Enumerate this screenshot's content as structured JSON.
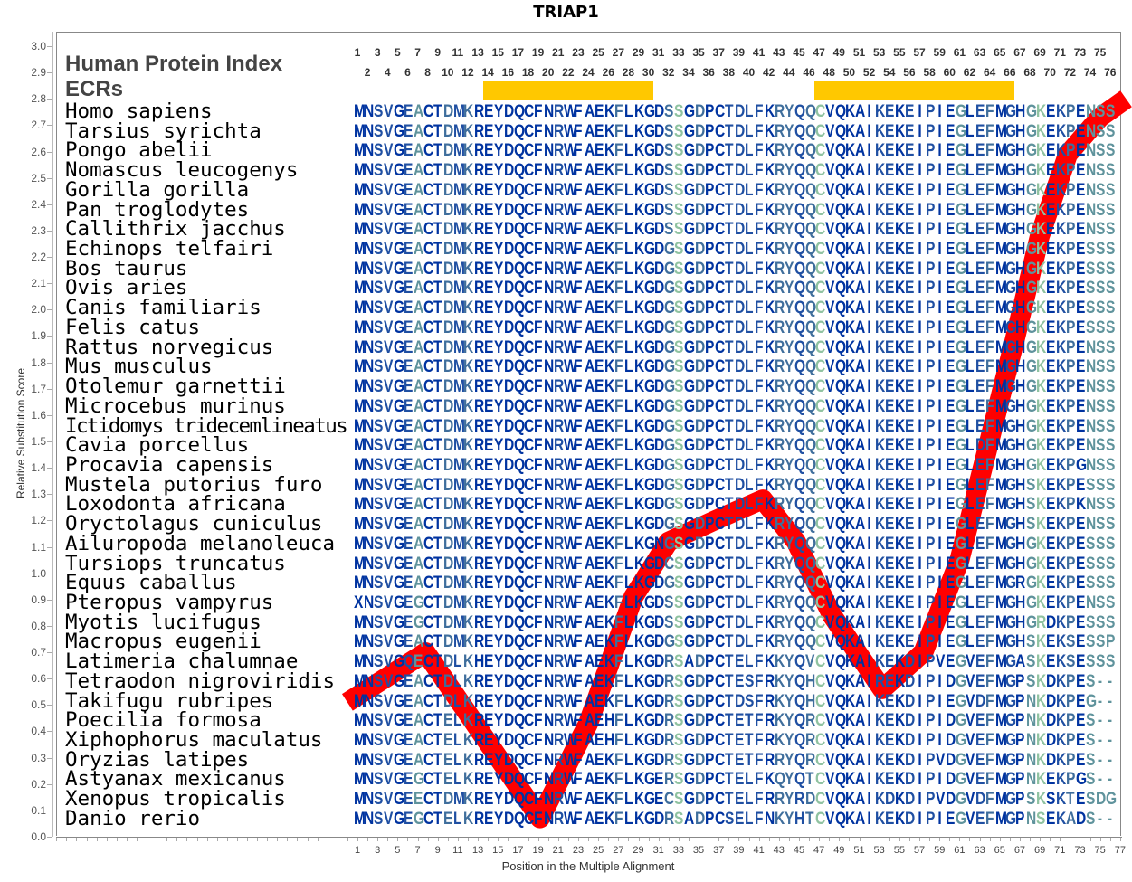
{
  "title": "TRIAP1",
  "header": {
    "index_label": "Human Protein Index",
    "ecr_label": "ECRs"
  },
  "colors": {
    "line": "#ff0000",
    "ecr": "#ffc800",
    "residue_palette": [
      "#0033a0",
      "#1f4fa2",
      "#3f6e9c",
      "#5f939c",
      "#8fc2a0"
    ]
  },
  "column_color_index": "0011013002120000000010000020000240200111102212400000110101003012010340120333.23",
  "ecrs": [
    [
      14,
      30
    ],
    [
      47,
      66
    ]
  ],
  "alignment": {
    "species": [
      {
        "name": "Homo sapiens",
        "seq": "MNSVGEACTDMKREYDQCFNRWFAEKFLKGDSSGDPCTDLFKRYQQCVQKAIKEKEIPIEGLEFMGHGKEKPENSS"
      },
      {
        "name": "Tarsius syrichta",
        "seq": "MNSVGEACTDMKREYDQCFNRWFAEKFLKGDSSGDPCTDLFKRYQQCVQKAIKEKEIPIEGLEFMGHGKEKPENSS"
      },
      {
        "name": "Pongo abelii",
        "seq": "MNSVGEACTDMKREYDQCFNRWFAEKFLKGDSSGDPCTDLFKRYQQCVQKAIKEKEIPIEGLEFMGHGKEKPENSS"
      },
      {
        "name": "Nomascus leucogenys",
        "seq": "MNSVGEACTDMKREYDQCFNRWFAEKFLKGDSSGDPCTDLFKRYQQCVQKAIKEKEIPIEGLEFMGHGKEKPENSS"
      },
      {
        "name": "Gorilla gorilla",
        "seq": "MNSVGEACTDMKREYDQCFNRWFAEKFLKGDSSGDPCTDLFKRYQQCVQKAIKEKEIPIEGLEFMGHGKEKPENSS"
      },
      {
        "name": "Pan troglodytes",
        "seq": "MNSVGEACTDMKREYDQCFNRWFAEKFLKGDSSGDPCTDLFKRYQQCVQKAIKEKEIPIEGLEFMGHGKEKPENSS"
      },
      {
        "name": "Callithrix jacchus",
        "seq": "MNSVGEACTDMKREYDQCFNRWFAEKFLKGDSSGDPCTDLFKRYQQCVQKAIKEKEIPIEGLEFMGHGKEKPENSS"
      },
      {
        "name": "Echinops telfairi",
        "seq": "MNSVGEACTDMKREYDQCFNRWFAEKFLKGDGSGDPCTDLFKRYQQCVQKAIKEKEIPIEGLEFMGHGKEKPESSS"
      },
      {
        "name": "Bos taurus",
        "seq": "MNSVGEACTDMKREYDQCFNRWFAEKFLKGDGSGDPCTDLFKRYQQCVQKAIKEKEIPIEGLEFMGHGKEKPESSS"
      },
      {
        "name": "Ovis aries",
        "seq": "MNSVGEACTDMKREYDQCFNRWFAEKFLKGDGSGDPCTDLFKRYQQCVQKAIKEKEIPIEGLEFMGHGKEKPESSS"
      },
      {
        "name": "Canis familiaris",
        "seq": "MNSVGEACTDMKREYDQCFNRWFAEKFLKGDGSGDPCTDLFKRYQQCVQKAIKEKEIPIEGLEFMGHGKEKPESSS"
      },
      {
        "name": "Felis catus",
        "seq": "MNSVGEACTDMKREYDQCFNRWFAEKFLKGDGSGDPCTDLFKRYQQCVQKAIKEKEIPIEGLEFMGHGKEKPESSS"
      },
      {
        "name": "Rattus norvegicus",
        "seq": "MNSVGEACTDMKREYDQCFNRWFAEKFLKGDGSGDPCTDLFKRYQQCVQKAIKEKEIPIEGLEFMGHGKEKPENSS"
      },
      {
        "name": "Mus musculus",
        "seq": "MNSVGEACTDMKREYDQCFNRWFAEKFLKGDGSGDPCTDLFKRYQQCVQKAIKEKEIPIEGLEFMGHGKEKPENSS"
      },
      {
        "name": "Otolemur garnettii",
        "seq": "MNSVGEACTDMKREYDQCFNRWFAEKFLKGDGSGDPCTDLFKRYQQCVQKAIKEKEIPIEGLEFMGHGKEKPENSS"
      },
      {
        "name": "Microcebus murinus",
        "seq": "MNSVGEACTDMKREYDQCFNRWFAEKFLKGDGSGDPCTDLFKRYQQCVQKAIKEKEIPIEGLEFMGHGKEKPENSS"
      },
      {
        "name": "Ictidomys tridecemlineatus",
        "seq": "MNSVGEACTDMKREYDQCFNRWFAEKFLKGDGSGDPCTDLFKRYQQCVQKAIKEKEIPIEGLEFMGHGKEKPENSS"
      },
      {
        "name": "Cavia porcellus",
        "seq": "MNSVGEACTDMKREYDQCFNRWFAEKFLKGDGSGDPCTDLFKRYQQCVQKAIKEKEIPIEGLDFMGHGKEKPENSS"
      },
      {
        "name": "Procavia capensis",
        "seq": "MNSVGEACTDMKREYDQCFNRWFAEKFLKGDGSGDPCTDLFKRYQQCVQKAIKEKEIPIEGLEFMGHGKEKPGNSS"
      },
      {
        "name": "Mustela putorius furo",
        "seq": "MNSVGEACTDMKREYDQCFNRWFAEKFLKGDGSGDPCTDLFKRYQQCVQKAIKEKEIPIEGLEFMGHSKEKPESSS"
      },
      {
        "name": "Loxodonta africana",
        "seq": "MNSVGEACTDMKREYDQCFNRWFAEKFLKGDGSGDPCTDLFKRYQQCVQKAIKEKEIPIEGLEFMGHSKEKPKNSS"
      },
      {
        "name": "Oryctolagus cuniculus",
        "seq": "MNSVGEACTDMKREYDQCFNRWFAEKFLKGDGSGDPCTDLFKRYQQCVQKAIKEKEIPIEGLEFMGHSKEKPENSS"
      },
      {
        "name": "Ailuropoda melanoleuca",
        "seq": "MNSVGEACTDMKREYDQCFNRWFAEKFLKGNGSGDPCTDLFKRYQQCVQKAIKEKEIPIEGLEFMGHGKEKPESSS"
      },
      {
        "name": "Tursiops truncatus",
        "seq": "MNSVGEACTDMKREYDQCFNRWFAEKFLKGDCSGDPCTDLFKRYQQCVQKAIKEKEIPIEGLEFMGHGKEKPESSS"
      },
      {
        "name": "Equus caballus",
        "seq": "MNSVGEACTDMKREYDQCFNRWFAEKFLKGDGSGDPCTDLFKRYQQCVQKAIKEKEIPIEGLEFMGRGKEKPESSS"
      },
      {
        "name": "Pteropus vampyrus",
        "seq": "XNSVGEGCTDMKREYDQCFNRWFAEKFLKGDSSGDPCTDLFKRYQQCVQKAIKEKEIPIEGLEFMGHGKEKPENSS"
      },
      {
        "name": "Myotis lucifugus",
        "seq": "MNSVGEGCTDMKREYDQCFNRWFAEKFLKGDSSGDPCTDLFKRYQQCVQKAIKEKEIPIEGLEFMGHGRDKPESSS"
      },
      {
        "name": "Macropus eugenii",
        "seq": "MNSVGEACTDMKREYDQCFNRWFAEKFLKGDGSGDPCTDLFKRYQQCVQKAIKEKEIPIEGLEFMGHSKEKSESSP"
      },
      {
        "name": "Latimeria chalumnae",
        "seq": "MNSVGQECTDLKHEYDQCFNRWFAEKFLKGDRSADPCTELFKKYQVCVQKAIKEKDIPVEGVEFMGASKEKSESSS"
      },
      {
        "name": "Tetraodon nigroviridis",
        "seq": "MNSVGEACTDLKREYDQCFNRWFAEKFLKGDRSGDPCTESFRKYQHCVQKAIREKDIPIDGVEFMGPSKDKPES--"
      },
      {
        "name": "Takifugu rubripes",
        "seq": "MNSVGEACTDLKREYDQCFNRWFAEKFLKGDRSGDPCTDSFRKYQHCVQKAIKEKDIPIEGVDFMGPNKDKPEG--"
      },
      {
        "name": "Poecilia formosa",
        "seq": "MNSVGEACTELKREYDQCFNRWFAEHFLKGDRSGDPCTETFRKYQRCVQKAIKEKDIPIDGVEFMGPNKDKPES--"
      },
      {
        "name": "Xiphophorus maculatus",
        "seq": "MNSVGEACTELKREYDQCFNRWFAEHFLKGDRSGDPCTETFRKYQRCVQKAIKEKDIPIDGVEFMGPNKDKPES--"
      },
      {
        "name": "Oryzias latipes",
        "seq": "MNSVGEACTELKREYDQCFNRWFAEKFLKGDRSGDPCTETFRRYQRCVQKAIKEKDIPVDGVEFMGPNKDKPES--"
      },
      {
        "name": "Astyanax mexicanus",
        "seq": "MNSVGEGCTELKREYDQCFNRWFAEKFLKGERSGDPCTELFKQYQTCVQKAIKEKDIPIDGVEFMGPNKEKPGS--"
      },
      {
        "name": "Xenopus tropicalis",
        "seq": "MNSVGEECTDMKREYDQCFNRWFAEKFLKGECSGDPCTELFRRYRDCVQKAIKDKDIPVDGVDFMGPSKSKTESDG"
      },
      {
        "name": "Danio rerio",
        "seq": "MNSVGEGCTELKREYDQCFNRWFAEKFLKGDRSADPCSELFNKYHTCVQKAIKEKDIPIEGVEFMGPNSEKADS--"
      }
    ]
  },
  "chart_data": {
    "type": "line",
    "title": "TRIAP1",
    "xlabel": "Position in the Multiple Alignment",
    "ylabel": "Relative Substitution Score",
    "xlim": [
      1,
      77
    ],
    "ylim": [
      0.0,
      3.0
    ],
    "x_ticks": [
      1,
      3,
      5,
      7,
      9,
      11,
      13,
      15,
      17,
      19,
      21,
      23,
      25,
      27,
      29,
      31,
      33,
      35,
      37,
      39,
      41,
      43,
      45,
      47,
      49,
      51,
      53,
      55,
      57,
      59,
      61,
      63,
      65,
      67,
      69,
      71,
      73,
      75,
      77
    ],
    "y_ticks": [
      "0.0",
      "0.1",
      "0.2",
      "0.3",
      "0.4",
      "0.5",
      "0.6",
      "0.7",
      "0.8",
      "0.9",
      "1.0",
      "1.1",
      "1.2",
      "1.3",
      "1.4",
      "1.5",
      "1.6",
      "1.7",
      "1.8",
      "1.9",
      "2.0",
      "2.1",
      "2.2",
      "2.3",
      "2.4",
      "2.5",
      "2.6",
      "2.7",
      "2.8",
      "2.9",
      "3.0"
    ],
    "top_ticks_odd": [
      1,
      3,
      5,
      7,
      9,
      11,
      13,
      15,
      17,
      19,
      21,
      23,
      25,
      27,
      29,
      31,
      33,
      35,
      37,
      39,
      41,
      43,
      45,
      47,
      49,
      51,
      53,
      55,
      57,
      59,
      61,
      63,
      65,
      67,
      69,
      71,
      73,
      75
    ],
    "top_ticks_even": [
      2,
      4,
      6,
      8,
      10,
      12,
      14,
      16,
      18,
      20,
      22,
      24,
      26,
      28,
      30,
      32,
      34,
      36,
      38,
      40,
      42,
      44,
      46,
      48,
      50,
      52,
      54,
      56,
      58,
      60,
      62,
      64,
      66,
      68,
      70,
      72,
      74,
      76
    ],
    "grid": false,
    "series": [
      {
        "x": [
          0,
          7.8,
          19.2,
          24,
          28.5,
          32,
          36.6,
          41.4,
          44.7,
          48.3,
          53.3,
          57.4,
          61,
          63.7,
          66.4,
          69,
          71.8,
          75,
          77.6
        ],
        "y": [
          0.51,
          0.7,
          0.07,
          0.43,
          0.91,
          1.12,
          1.2,
          1.28,
          1.12,
          0.84,
          0.56,
          0.7,
          1.05,
          1.46,
          1.87,
          2.28,
          2.59,
          2.73,
          2.8
        ]
      }
    ]
  }
}
